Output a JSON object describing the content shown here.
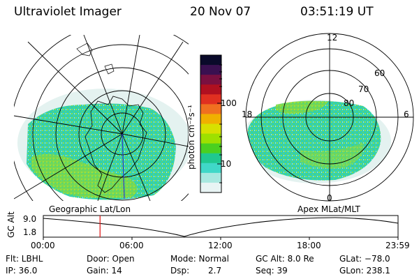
{
  "header": {
    "instrument": "Ultraviolet Imager",
    "date": "20 Nov 07",
    "time": "03:51:19 UT"
  },
  "geo_panel": {
    "label": "Geographic Lat/Lon"
  },
  "polar_panel": {
    "label": "Apex MLat/MLT",
    "mlt_labels": [
      "12",
      "18",
      "6",
      "0"
    ],
    "lat_labels": [
      "60",
      "70",
      "80"
    ]
  },
  "colorbar": {
    "label": "photon cm⁻²s⁻¹",
    "tick_labels": [
      "100",
      "10"
    ],
    "colors": [
      "#0a0a2a",
      "#3a1050",
      "#7a1040",
      "#b01020",
      "#e03020",
      "#f07020",
      "#f0b000",
      "#d8e000",
      "#9ee000",
      "#4ad020",
      "#20c890",
      "#40d8c8",
      "#a8e8e0",
      "#e8f4f4"
    ]
  },
  "altitude_timeline": {
    "axis_label": "GC Alt",
    "y_tick_labels": [
      "9.0",
      "1.8"
    ],
    "x_tick_labels": [
      "00:00",
      "06:00",
      "12:00",
      "18:00",
      "23:59"
    ],
    "current_time_fraction": 0.16
  },
  "footer": {
    "filter": "Flt: LBHL",
    "ip": "IP: 36.0",
    "door": "Door: Open",
    "gain": "Gain: 14",
    "mode": "Mode: Normal",
    "dsp_label": "Dsp:",
    "dsp_value": "2.7",
    "gc_alt": "GC Alt: 8.0 Re",
    "seq": "Seq: 39",
    "glat": "GLat: −78.0",
    "glon": "GLon: 238.1"
  }
}
